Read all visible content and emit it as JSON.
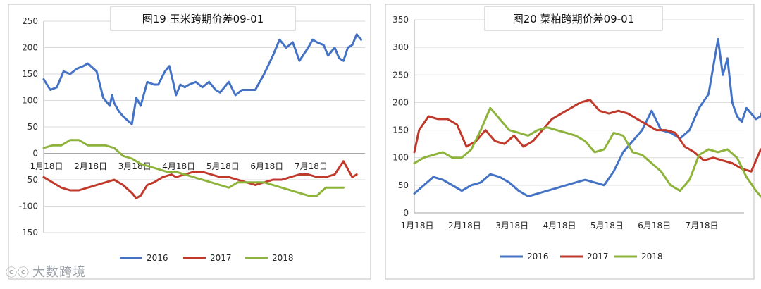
{
  "chart_data": [
    {
      "type": "line",
      "title": "图19 玉米跨期价差09-01",
      "categories": [
        "1月18日",
        "2月18日",
        "3月18日",
        "4月18日",
        "5月18日",
        "6月18日",
        "7月18日"
      ],
      "ylim": [
        -150,
        250
      ],
      "yticks": [
        -150,
        -100,
        -50,
        0,
        50,
        100,
        150,
        200,
        250
      ],
      "grid": true,
      "legend": "bottom",
      "series": [
        {
          "name": "2016",
          "color": "#4472C4",
          "x": [
            0,
            0.15,
            0.3,
            0.45,
            0.6,
            0.75,
            0.9,
            1.0,
            1.2,
            1.35,
            1.5,
            1.55,
            1.6,
            1.7,
            1.8,
            2.0,
            2.1,
            2.2,
            2.35,
            2.5,
            2.6,
            2.75,
            2.85,
            2.95,
            3.0,
            3.1,
            3.2,
            3.3,
            3.45,
            3.6,
            3.75,
            3.9,
            4.0,
            4.2,
            4.35,
            4.5,
            4.65,
            4.8,
            5.0,
            5.2,
            5.35,
            5.5,
            5.65,
            5.8,
            6.0,
            6.1,
            6.2,
            6.35,
            6.45,
            6.5,
            6.6,
            6.7,
            6.8,
            6.9,
            7.0,
            7.1,
            7.2
          ],
          "y": [
            140,
            120,
            125,
            155,
            150,
            160,
            165,
            170,
            155,
            105,
            90,
            110,
            95,
            80,
            70,
            55,
            105,
            90,
            135,
            130,
            130,
            155,
            165,
            130,
            110,
            130,
            125,
            130,
            135,
            125,
            135,
            120,
            115,
            135,
            110,
            120,
            120,
            120,
            150,
            185,
            215,
            200,
            210,
            175,
            200,
            215,
            210,
            205,
            185,
            190,
            200,
            180,
            175,
            200,
            205,
            225,
            215
          ]
        },
        {
          "name": "2017",
          "color": "#C0392B",
          "x": [
            0,
            0.2,
            0.4,
            0.6,
            0.8,
            1.0,
            1.2,
            1.4,
            1.6,
            1.8,
            2.0,
            2.1,
            2.2,
            2.35,
            2.5,
            2.7,
            2.9,
            3.0,
            3.2,
            3.4,
            3.6,
            3.8,
            4.0,
            4.2,
            4.4,
            4.6,
            4.8,
            5.0,
            5.2,
            5.4,
            5.6,
            5.8,
            6.0,
            6.2,
            6.4,
            6.6,
            6.8,
            6.9,
            7.0,
            7.1
          ],
          "y": [
            -45,
            -55,
            -65,
            -70,
            -70,
            -65,
            -60,
            -55,
            -50,
            -60,
            -75,
            -85,
            -80,
            -60,
            -55,
            -45,
            -40,
            -45,
            -40,
            -35,
            -35,
            -40,
            -45,
            -45,
            -50,
            -55,
            -60,
            -55,
            -50,
            -50,
            -45,
            -40,
            -40,
            -45,
            -45,
            -40,
            -15,
            -30,
            -45,
            -40
          ]
        },
        {
          "name": "2018",
          "color": "#8DB33A",
          "x": [
            0,
            0.2,
            0.4,
            0.6,
            0.8,
            1.0,
            1.2,
            1.4,
            1.6,
            1.8,
            2.0,
            2.2,
            2.4,
            2.6,
            2.8,
            3.0,
            3.2,
            3.4,
            3.6,
            3.8,
            4.0,
            4.2,
            4.4,
            4.6,
            4.8,
            5.0,
            5.2,
            5.4,
            5.6,
            5.8,
            6.0,
            6.2,
            6.4,
            6.6,
            6.8
          ],
          "y": [
            10,
            15,
            15,
            25,
            25,
            15,
            15,
            15,
            10,
            -5,
            -10,
            -20,
            -25,
            -30,
            -35,
            -35,
            -40,
            -45,
            -50,
            -55,
            -60,
            -65,
            -55,
            -55,
            -55,
            -55,
            -60,
            -65,
            -70,
            -75,
            -80,
            -80,
            -65,
            -65,
            -65
          ]
        }
      ]
    },
    {
      "type": "line",
      "title": "图20 菜粕跨期价差09-01",
      "categories": [
        "1月18日",
        "2月18日",
        "3月18日",
        "4月18日",
        "5月18日",
        "6月18日",
        "7月18日"
      ],
      "ylim": [
        0,
        350
      ],
      "yticks": [
        0,
        50,
        100,
        150,
        200,
        250,
        300,
        350
      ],
      "grid": true,
      "legend": "bottom",
      "series": [
        {
          "name": "2016",
          "color": "#4472C4",
          "x": [
            0,
            0.2,
            0.4,
            0.6,
            0.8,
            1.0,
            1.2,
            1.4,
            1.6,
            1.8,
            2.0,
            2.2,
            2.4,
            2.6,
            2.8,
            3.0,
            3.2,
            3.4,
            3.6,
            3.8,
            4.0,
            4.2,
            4.4,
            4.6,
            4.8,
            5.0,
            5.2,
            5.4,
            5.6,
            5.8,
            6.0,
            6.2,
            6.4,
            6.5,
            6.6,
            6.7,
            6.8,
            6.9,
            7.0,
            7.1,
            7.2,
            7.3,
            7.4,
            7.5,
            7.6,
            7.7,
            7.8,
            7.9,
            8.0,
            8.1
          ],
          "y": [
            35,
            50,
            65,
            60,
            50,
            40,
            50,
            55,
            70,
            65,
            55,
            40,
            30,
            35,
            40,
            45,
            50,
            55,
            60,
            55,
            50,
            75,
            110,
            130,
            150,
            185,
            150,
            145,
            135,
            150,
            190,
            215,
            315,
            250,
            280,
            200,
            175,
            165,
            190,
            180,
            170,
            175,
            205,
            210,
            140,
            135,
            145,
            130,
            110,
            110
          ]
        },
        {
          "name": "2017",
          "color": "#C0392B",
          "x": [
            0,
            0.1,
            0.3,
            0.5,
            0.7,
            0.9,
            1.1,
            1.3,
            1.5,
            1.7,
            1.9,
            2.1,
            2.3,
            2.5,
            2.7,
            2.9,
            3.1,
            3.3,
            3.5,
            3.7,
            3.9,
            4.1,
            4.3,
            4.5,
            4.7,
            4.9,
            5.1,
            5.3,
            5.5,
            5.7,
            5.9,
            6.1,
            6.3,
            6.5,
            6.7,
            6.9,
            7.1,
            7.3,
            7.5,
            7.7,
            7.9,
            8.1
          ],
          "y": [
            110,
            150,
            175,
            170,
            170,
            160,
            120,
            130,
            150,
            130,
            125,
            140,
            120,
            130,
            150,
            170,
            180,
            190,
            200,
            205,
            185,
            180,
            185,
            180,
            170,
            160,
            150,
            150,
            145,
            120,
            110,
            95,
            100,
            95,
            90,
            80,
            75,
            115,
            90,
            65,
            80,
            85
          ]
        },
        {
          "name": "2018",
          "color": "#8DB33A",
          "x": [
            0,
            0.2,
            0.4,
            0.6,
            0.8,
            1.0,
            1.2,
            1.4,
            1.6,
            1.8,
            2.0,
            2.2,
            2.4,
            2.6,
            2.8,
            3.0,
            3.2,
            3.4,
            3.6,
            3.8,
            4.0,
            4.2,
            4.4,
            4.6,
            4.8,
            5.0,
            5.2,
            5.4,
            5.6,
            5.8,
            6.0,
            6.2,
            6.4,
            6.6,
            6.8,
            7.0,
            7.2,
            7.4,
            7.6
          ],
          "y": [
            90,
            100,
            105,
            110,
            100,
            100,
            115,
            150,
            190,
            170,
            150,
            145,
            140,
            150,
            155,
            150,
            145,
            140,
            130,
            110,
            115,
            145,
            140,
            110,
            105,
            90,
            75,
            50,
            40,
            60,
            105,
            115,
            110,
            115,
            100,
            65,
            40,
            20,
            15
          ]
        }
      ]
    }
  ],
  "watermark": {
    "logo_icon": "ⓒⓒ",
    "text": "大数跨境"
  }
}
